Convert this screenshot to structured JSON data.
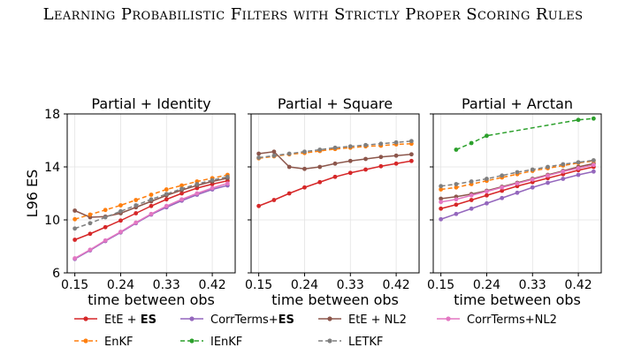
{
  "header": {
    "title": "Learning Probabilistic Filters with Strictly Proper Scoring Rules"
  },
  "colors": {
    "ete_es": "#d62728",
    "corrterms_es": "#9467bd",
    "ete_nl2": "#8c564b",
    "corrterms_nl2": "#e377c2",
    "enkf": "#ff7f0e",
    "ienkf": "#2ca02c",
    "letkf": "#7f7f7f"
  },
  "legend": {
    "placement": "bottom",
    "entries": [
      {
        "key": "ete_es",
        "label_pre": "EtE + ",
        "label_bold": "ES",
        "style": "solid"
      },
      {
        "key": "corrterms_es",
        "label_pre": "CorrTerms+",
        "label_bold": "ES",
        "style": "solid"
      },
      {
        "key": "ete_nl2",
        "label_pre": "EtE + NL2",
        "label_bold": "",
        "style": "solid"
      },
      {
        "key": "corrterms_nl2",
        "label_pre": "CorrTerms+NL2",
        "label_bold": "",
        "style": "solid"
      },
      {
        "key": "enkf",
        "label_pre": "EnKF",
        "label_bold": "",
        "style": "dashed"
      },
      {
        "key": "ienkf",
        "label_pre": "IEnKF",
        "label_bold": "",
        "style": "dashed"
      },
      {
        "key": "letkf",
        "label_pre": "LETKF",
        "label_bold": "",
        "style": "dashed"
      }
    ]
  },
  "chart_data": [
    {
      "type": "line",
      "title": "Partial + Identity",
      "xlabel": "time between obs",
      "ylabel": "L96 ES",
      "xlim": [
        0.135,
        0.465
      ],
      "ylim": [
        6,
        18
      ],
      "xticks": [
        "0.15",
        "0.24",
        "0.33",
        "0.42"
      ],
      "yticks": [
        "6",
        "10",
        "14",
        "18"
      ],
      "grid": true,
      "x": [
        0.15,
        0.18,
        0.21,
        0.24,
        0.27,
        0.3,
        0.33,
        0.36,
        0.39,
        0.42,
        0.45
      ],
      "series": [
        {
          "key": "ete_es",
          "values": [
            8.5,
            8.95,
            9.45,
            9.95,
            10.5,
            11.05,
            11.55,
            12.0,
            12.4,
            12.7,
            12.95
          ]
        },
        {
          "key": "corrterms_es",
          "values": [
            7.05,
            7.7,
            8.4,
            9.05,
            9.75,
            10.4,
            10.95,
            11.45,
            11.9,
            12.3,
            12.6
          ]
        },
        {
          "key": "ete_nl2",
          "values": [
            10.7,
            10.2,
            10.25,
            10.5,
            10.95,
            11.4,
            11.85,
            12.25,
            12.6,
            12.9,
            13.15
          ]
        },
        {
          "key": "corrterms_nl2",
          "values": [
            7.1,
            7.75,
            8.45,
            9.1,
            9.8,
            10.45,
            11.05,
            11.55,
            12.0,
            12.4,
            12.75
          ]
        },
        {
          "key": "enkf",
          "values": [
            10.05,
            10.4,
            10.75,
            11.1,
            11.5,
            11.9,
            12.3,
            12.6,
            12.9,
            13.15,
            13.4
          ]
        },
        {
          "key": "letkf",
          "values": [
            9.35,
            9.75,
            10.2,
            10.65,
            11.1,
            11.55,
            11.95,
            12.35,
            12.7,
            13.0,
            13.25
          ]
        }
      ]
    },
    {
      "type": "line",
      "title": "Partial + Square",
      "xlabel": "time between obs",
      "ylabel": "",
      "xlim": [
        0.135,
        0.465
      ],
      "ylim": [
        6,
        18
      ],
      "xticks": [
        "0.15",
        "0.24",
        "0.33",
        "0.42"
      ],
      "yticks": [],
      "grid": true,
      "x": [
        0.15,
        0.18,
        0.21,
        0.24,
        0.27,
        0.3,
        0.33,
        0.36,
        0.39,
        0.42,
        0.45
      ],
      "series": [
        {
          "key": "ete_es",
          "values": [
            11.05,
            11.5,
            12.0,
            12.45,
            12.85,
            13.25,
            13.55,
            13.8,
            14.05,
            14.25,
            14.45
          ]
        },
        {
          "key": "ete_nl2",
          "values": [
            15.0,
            15.15,
            14.0,
            13.85,
            14.0,
            14.25,
            14.45,
            14.6,
            14.75,
            14.85,
            14.95
          ]
        },
        {
          "key": "enkf",
          "values": [
            14.65,
            14.8,
            14.95,
            15.05,
            15.2,
            15.35,
            15.45,
            15.55,
            15.6,
            15.7,
            15.75
          ]
        },
        {
          "key": "letkf",
          "values": [
            14.7,
            14.85,
            15.0,
            15.15,
            15.3,
            15.45,
            15.55,
            15.65,
            15.75,
            15.85,
            15.95
          ]
        }
      ]
    },
    {
      "type": "line",
      "title": "Partial + Arctan",
      "xlabel": "time between obs",
      "ylabel": "",
      "xlim": [
        0.135,
        0.465
      ],
      "ylim": [
        6,
        18
      ],
      "xticks": [
        "0.15",
        "0.24",
        "0.33",
        "0.42"
      ],
      "yticks": [],
      "grid": true,
      "x": [
        0.15,
        0.18,
        0.21,
        0.24,
        0.27,
        0.3,
        0.33,
        0.36,
        0.39,
        0.42,
        0.45
      ],
      "series": [
        {
          "key": "ete_es",
          "values": [
            10.85,
            11.15,
            11.5,
            11.85,
            12.2,
            12.55,
            12.85,
            13.15,
            13.45,
            13.75,
            14.0
          ]
        },
        {
          "key": "corrterms_es",
          "values": [
            10.05,
            10.45,
            10.85,
            11.25,
            11.65,
            12.05,
            12.45,
            12.8,
            13.1,
            13.4,
            13.65
          ]
        },
        {
          "key": "ete_nl2",
          "values": [
            11.6,
            11.75,
            11.95,
            12.2,
            12.5,
            12.8,
            13.1,
            13.4,
            13.7,
            14.0,
            14.25
          ]
        },
        {
          "key": "corrterms_nl2",
          "values": [
            11.35,
            11.55,
            11.85,
            12.15,
            12.45,
            12.75,
            13.05,
            13.35,
            13.65,
            13.9,
            14.15
          ]
        },
        {
          "key": "enkf",
          "values": [
            12.3,
            12.45,
            12.7,
            12.95,
            13.2,
            13.45,
            13.7,
            13.9,
            14.1,
            14.3,
            14.45
          ]
        },
        {
          "key": "ienkf",
          "x": [
            0.18,
            0.21,
            0.24,
            0.42,
            0.45
          ],
          "values": [
            15.3,
            15.8,
            16.35,
            17.55,
            17.65
          ]
        },
        {
          "key": "letkf",
          "values": [
            12.55,
            12.7,
            12.9,
            13.1,
            13.35,
            13.6,
            13.8,
            14.0,
            14.2,
            14.35,
            14.5
          ]
        }
      ]
    }
  ]
}
